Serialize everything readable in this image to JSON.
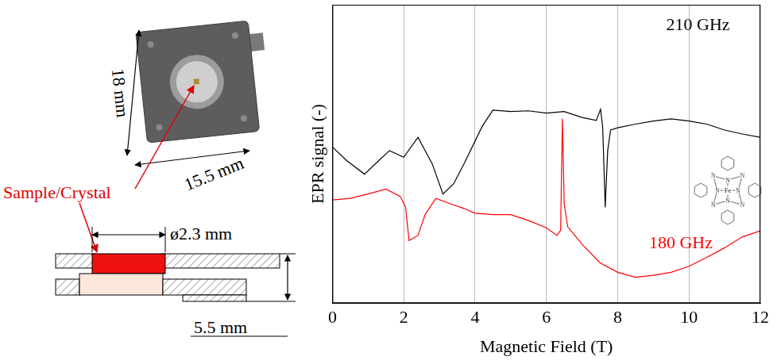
{
  "diagram": {
    "photo_dims": [
      "18 mm",
      "15.5 mm"
    ],
    "sample_label": "Sample/Crystal",
    "diameter": "ø2.3 mm",
    "height": "5.5 mm"
  },
  "molecule": {
    "metal": "Fe",
    "atoms": [
      "N",
      "N",
      "N",
      "N",
      "N",
      "N",
      "N",
      "N"
    ]
  },
  "chart_data": {
    "type": "line",
    "x_label": "Magnetic Field (T)",
    "y_label": "EPR signal (-)",
    "xlim": [
      0,
      12
    ],
    "xticks": [
      0,
      2,
      4,
      6,
      8,
      10,
      12
    ],
    "ylim": [
      0,
      9
    ],
    "grid": "x",
    "tick_labels": "x",
    "series": [
      {
        "name": "210 GHz",
        "color": "#000000",
        "x": [
          0,
          0.4,
          0.9,
          1.3,
          1.6,
          2.0,
          2.4,
          2.8,
          3.1,
          3.4,
          3.7,
          4.2,
          4.5,
          5,
          5.5,
          6,
          6.5,
          7,
          7.4,
          7.52,
          7.58,
          7.65,
          7.72,
          7.8,
          8,
          8.5,
          9,
          9.5,
          10,
          10.5,
          11,
          11.5,
          12
        ],
        "values": [
          4.71,
          4.3,
          3.89,
          4.3,
          4.6,
          4.4,
          5.0,
          4.2,
          3.29,
          3.6,
          4.22,
          5.33,
          5.82,
          5.78,
          5.8,
          5.73,
          5.78,
          5.6,
          5.51,
          5.85,
          5.3,
          2.89,
          4.6,
          5.22,
          5.29,
          5.4,
          5.49,
          5.56,
          5.49,
          5.4,
          5.22,
          5.1,
          5.0
        ]
      },
      {
        "name": "180 GHz",
        "color": "#ff0000",
        "x": [
          0,
          0.5,
          1,
          1.5,
          1.9,
          2.05,
          2.15,
          2.25,
          2.4,
          2.6,
          2.9,
          3.3,
          3.7,
          4,
          4.5,
          5,
          5.5,
          6,
          6.3,
          6.4,
          6.45,
          6.5,
          6.6,
          6.8,
          7,
          7.5,
          8,
          8.5,
          9,
          9.5,
          10,
          10.5,
          11,
          11.5,
          12
        ],
        "values": [
          3.11,
          3.16,
          3.29,
          3.44,
          3.22,
          2.9,
          1.89,
          1.95,
          2.04,
          2.67,
          3.16,
          3.0,
          2.85,
          2.71,
          2.67,
          2.67,
          2.49,
          2.27,
          2.04,
          2.2,
          5.56,
          3.0,
          2.3,
          2.04,
          1.78,
          1.22,
          0.93,
          0.78,
          0.84,
          0.93,
          1.11,
          1.38,
          1.67,
          2.0,
          2.18
        ]
      }
    ]
  }
}
